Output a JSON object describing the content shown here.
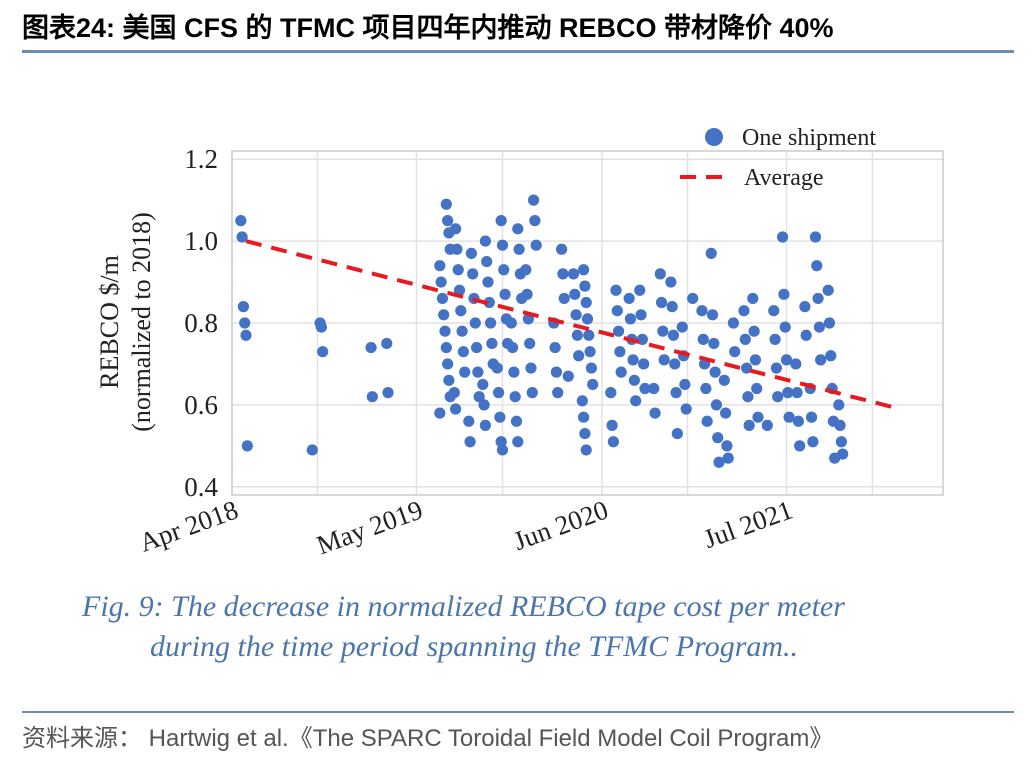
{
  "header": {
    "title": "图表24:  美国 CFS 的 TFMC 项目四年内推动 REBCO 带材降价 40%"
  },
  "caption": {
    "line1": "Fig. 9: The decrease in normalized REBCO tape cost per meter",
    "line2": "during the time period spanning the TFMC Program.."
  },
  "source": "资料来源： Hartwig et al.《The SPARC Toroidal Field Model Coil Program》",
  "colors": {
    "accent_rule": "#6d8db3",
    "points": "#4472c4",
    "average": "#e8191f",
    "caption": "#4a76ac"
  },
  "chart_data": {
    "type": "scatter",
    "title": "",
    "xlabel": "",
    "ylabel": "REBCO $/m\n(normalized to 2018)",
    "ylabel_lines": [
      "REBCO $/m",
      "(normalized to 2018)"
    ],
    "x_ticks": [
      "Apr 2018",
      "May 2019",
      "Jun 2020",
      "Jul 2021"
    ],
    "y_ticks": [
      "0.4",
      "0.6",
      "0.8",
      "1.0",
      "1.2"
    ],
    "ylim": [
      0.38,
      1.22
    ],
    "grid": true,
    "legend": {
      "placement": "top-right",
      "entries": [
        "One shipment",
        "Average"
      ]
    },
    "series": [
      {
        "name": "One shipment",
        "kind": "scatter",
        "points": [
          [
            "2018-05",
            1.05
          ],
          [
            "2018-05",
            1.01
          ],
          [
            "2018-05",
            0.84
          ],
          [
            "2018-05",
            0.8
          ],
          [
            "2018-05",
            0.77
          ],
          [
            "2018-05",
            0.5
          ],
          [
            "2018-10",
            0.8
          ],
          [
            "2018-10",
            0.79
          ],
          [
            "2018-10",
            0.73
          ],
          [
            "2018-10",
            0.49
          ],
          [
            "2019-02",
            0.74
          ],
          [
            "2019-02",
            0.62
          ],
          [
            "2019-03",
            0.75
          ],
          [
            "2019-03",
            0.63
          ],
          [
            "2019-07",
            1.09
          ],
          [
            "2019-07",
            1.05
          ],
          [
            "2019-07",
            1.02
          ],
          [
            "2019-07",
            0.98
          ],
          [
            "2019-07",
            0.94
          ],
          [
            "2019-07",
            0.9
          ],
          [
            "2019-07",
            0.86
          ],
          [
            "2019-07",
            0.82
          ],
          [
            "2019-07",
            0.78
          ],
          [
            "2019-07",
            0.74
          ],
          [
            "2019-07",
            0.7
          ],
          [
            "2019-07",
            0.66
          ],
          [
            "2019-07",
            0.62
          ],
          [
            "2019-07",
            0.58
          ],
          [
            "2019-08",
            1.03
          ],
          [
            "2019-08",
            0.98
          ],
          [
            "2019-08",
            0.93
          ],
          [
            "2019-08",
            0.88
          ],
          [
            "2019-08",
            0.83
          ],
          [
            "2019-08",
            0.78
          ],
          [
            "2019-08",
            0.73
          ],
          [
            "2019-08",
            0.68
          ],
          [
            "2019-08",
            0.63
          ],
          [
            "2019-08",
            0.59
          ],
          [
            "2019-09",
            0.97
          ],
          [
            "2019-09",
            0.92
          ],
          [
            "2019-09",
            0.86
          ],
          [
            "2019-09",
            0.8
          ],
          [
            "2019-09",
            0.74
          ],
          [
            "2019-09",
            0.68
          ],
          [
            "2019-09",
            0.62
          ],
          [
            "2019-09",
            0.56
          ],
          [
            "2019-09",
            0.51
          ],
          [
            "2019-10",
            1.0
          ],
          [
            "2019-10",
            0.95
          ],
          [
            "2019-10",
            0.9
          ],
          [
            "2019-10",
            0.85
          ],
          [
            "2019-10",
            0.8
          ],
          [
            "2019-10",
            0.75
          ],
          [
            "2019-10",
            0.7
          ],
          [
            "2019-10",
            0.65
          ],
          [
            "2019-10",
            0.6
          ],
          [
            "2019-10",
            0.55
          ],
          [
            "2019-11",
            1.05
          ],
          [
            "2019-11",
            0.99
          ],
          [
            "2019-11",
            0.93
          ],
          [
            "2019-11",
            0.87
          ],
          [
            "2019-11",
            0.81
          ],
          [
            "2019-11",
            0.75
          ],
          [
            "2019-11",
            0.69
          ],
          [
            "2019-11",
            0.63
          ],
          [
            "2019-11",
            0.57
          ],
          [
            "2019-11",
            0.51
          ],
          [
            "2019-11",
            0.49
          ],
          [
            "2019-12",
            1.03
          ],
          [
            "2019-12",
            0.98
          ],
          [
            "2019-12",
            0.92
          ],
          [
            "2019-12",
            0.86
          ],
          [
            "2019-12",
            0.8
          ],
          [
            "2019-12",
            0.74
          ],
          [
            "2019-12",
            0.68
          ],
          [
            "2019-12",
            0.62
          ],
          [
            "2019-12",
            0.56
          ],
          [
            "2019-12",
            0.51
          ],
          [
            "2020-01",
            1.1
          ],
          [
            "2020-01",
            1.05
          ],
          [
            "2020-01",
            0.99
          ],
          [
            "2020-01",
            0.93
          ],
          [
            "2020-01",
            0.87
          ],
          [
            "2020-01",
            0.81
          ],
          [
            "2020-01",
            0.75
          ],
          [
            "2020-01",
            0.69
          ],
          [
            "2020-01",
            0.63
          ],
          [
            "2020-03",
            0.98
          ],
          [
            "2020-03",
            0.92
          ],
          [
            "2020-03",
            0.86
          ],
          [
            "2020-03",
            0.8
          ],
          [
            "2020-03",
            0.74
          ],
          [
            "2020-03",
            0.68
          ],
          [
            "2020-03",
            0.63
          ],
          [
            "2020-04",
            0.92
          ],
          [
            "2020-04",
            0.87
          ],
          [
            "2020-04",
            0.82
          ],
          [
            "2020-04",
            0.77
          ],
          [
            "2020-04",
            0.72
          ],
          [
            "2020-04",
            0.67
          ],
          [
            "2020-05",
            0.93
          ],
          [
            "2020-05",
            0.89
          ],
          [
            "2020-05",
            0.85
          ],
          [
            "2020-05",
            0.81
          ],
          [
            "2020-05",
            0.77
          ],
          [
            "2020-05",
            0.73
          ],
          [
            "2020-05",
            0.69
          ],
          [
            "2020-05",
            0.65
          ],
          [
            "2020-05",
            0.61
          ],
          [
            "2020-05",
            0.57
          ],
          [
            "2020-05",
            0.53
          ],
          [
            "2020-05",
            0.49
          ],
          [
            "2020-07",
            0.88
          ],
          [
            "2020-07",
            0.83
          ],
          [
            "2020-07",
            0.78
          ],
          [
            "2020-07",
            0.73
          ],
          [
            "2020-07",
            0.68
          ],
          [
            "2020-07",
            0.63
          ],
          [
            "2020-07",
            0.55
          ],
          [
            "2020-07",
            0.51
          ],
          [
            "2020-08",
            0.86
          ],
          [
            "2020-08",
            0.81
          ],
          [
            "2020-08",
            0.76
          ],
          [
            "2020-08",
            0.71
          ],
          [
            "2020-08",
            0.66
          ],
          [
            "2020-08",
            0.61
          ],
          [
            "2020-09",
            0.88
          ],
          [
            "2020-09",
            0.82
          ],
          [
            "2020-09",
            0.76
          ],
          [
            "2020-09",
            0.7
          ],
          [
            "2020-09",
            0.64
          ],
          [
            "2020-10",
            0.92
          ],
          [
            "2020-10",
            0.85
          ],
          [
            "2020-10",
            0.78
          ],
          [
            "2020-10",
            0.71
          ],
          [
            "2020-10",
            0.64
          ],
          [
            "2020-10",
            0.58
          ],
          [
            "2020-11",
            0.9
          ],
          [
            "2020-11",
            0.84
          ],
          [
            "2020-11",
            0.77
          ],
          [
            "2020-11",
            0.7
          ],
          [
            "2020-11",
            0.63
          ],
          [
            "2020-11",
            0.53
          ],
          [
            "2020-12",
            0.86
          ],
          [
            "2020-12",
            0.79
          ],
          [
            "2020-12",
            0.72
          ],
          [
            "2020-12",
            0.65
          ],
          [
            "2020-12",
            0.59
          ],
          [
            "2021-01",
            0.83
          ],
          [
            "2021-01",
            0.76
          ],
          [
            "2021-01",
            0.7
          ],
          [
            "2021-01",
            0.64
          ],
          [
            "2021-01",
            0.56
          ],
          [
            "2021-02",
            0.97
          ],
          [
            "2021-02",
            0.82
          ],
          [
            "2021-02",
            0.75
          ],
          [
            "2021-02",
            0.68
          ],
          [
            "2021-02",
            0.6
          ],
          [
            "2021-02",
            0.52
          ],
          [
            "2021-02",
            0.46
          ],
          [
            "2021-03",
            0.8
          ],
          [
            "2021-03",
            0.73
          ],
          [
            "2021-03",
            0.66
          ],
          [
            "2021-03",
            0.58
          ],
          [
            "2021-03",
            0.5
          ],
          [
            "2021-03",
            0.47
          ],
          [
            "2021-04",
            0.83
          ],
          [
            "2021-04",
            0.76
          ],
          [
            "2021-04",
            0.69
          ],
          [
            "2021-04",
            0.62
          ],
          [
            "2021-04",
            0.55
          ],
          [
            "2021-05",
            0.86
          ],
          [
            "2021-05",
            0.78
          ],
          [
            "2021-05",
            0.71
          ],
          [
            "2021-05",
            0.64
          ],
          [
            "2021-05",
            0.57
          ],
          [
            "2021-06",
            0.83
          ],
          [
            "2021-06",
            0.76
          ],
          [
            "2021-06",
            0.69
          ],
          [
            "2021-06",
            0.62
          ],
          [
            "2021-06",
            0.55
          ],
          [
            "2021-07",
            1.01
          ],
          [
            "2021-07",
            0.87
          ],
          [
            "2021-07",
            0.79
          ],
          [
            "2021-07",
            0.71
          ],
          [
            "2021-07",
            0.63
          ],
          [
            "2021-07",
            0.57
          ],
          [
            "2021-08",
            0.84
          ],
          [
            "2021-08",
            0.77
          ],
          [
            "2021-08",
            0.7
          ],
          [
            "2021-08",
            0.63
          ],
          [
            "2021-08",
            0.56
          ],
          [
            "2021-08",
            0.5
          ],
          [
            "2021-09",
            1.01
          ],
          [
            "2021-09",
            0.94
          ],
          [
            "2021-09",
            0.86
          ],
          [
            "2021-09",
            0.79
          ],
          [
            "2021-09",
            0.71
          ],
          [
            "2021-09",
            0.64
          ],
          [
            "2021-09",
            0.57
          ],
          [
            "2021-09",
            0.51
          ],
          [
            "2021-10",
            0.88
          ],
          [
            "2021-10",
            0.8
          ],
          [
            "2021-10",
            0.72
          ],
          [
            "2021-10",
            0.64
          ],
          [
            "2021-10",
            0.56
          ],
          [
            "2021-10",
            0.47
          ],
          [
            "2021-11",
            0.6
          ],
          [
            "2021-11",
            0.55
          ],
          [
            "2021-11",
            0.51
          ],
          [
            "2021-11",
            0.48
          ]
        ]
      },
      {
        "name": "Average",
        "kind": "dashed-line",
        "points": [
          [
            "2018-05",
            1.0
          ],
          [
            "2022-03",
            0.59
          ]
        ]
      }
    ]
  }
}
